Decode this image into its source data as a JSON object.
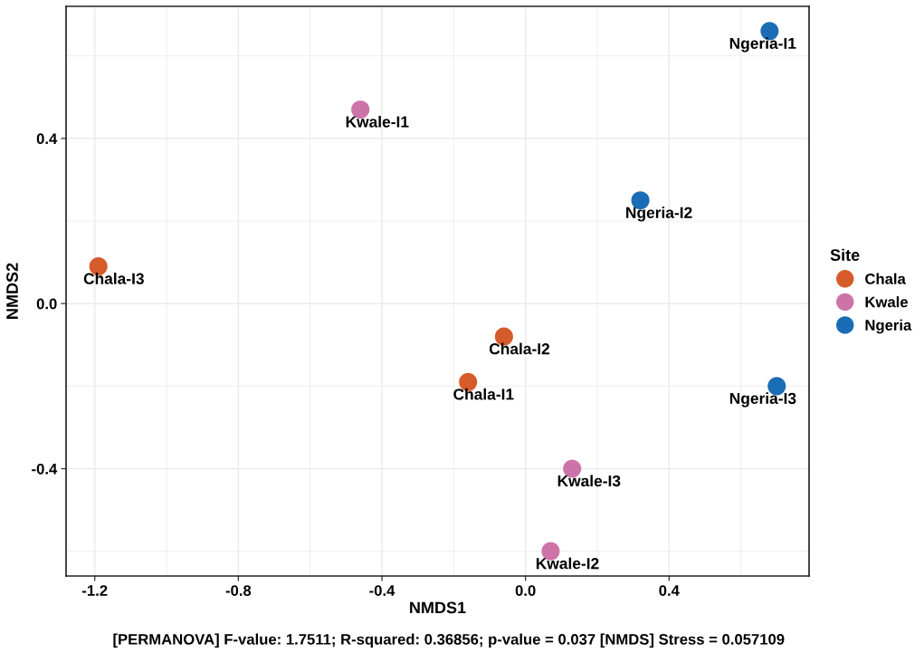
{
  "chart_data": {
    "type": "scatter",
    "xlabel": "NMDS1",
    "ylabel": "NMDS2",
    "legend_title": "Site",
    "legend": "right",
    "grid": true,
    "marker": "circle",
    "series": [
      {
        "name": "Chala",
        "color": "#d55b2a",
        "x": [
          -0.16,
          -0.06,
          -1.19
        ],
        "values": [
          -0.19,
          -0.08,
          0.09
        ]
      },
      {
        "name": "Kwale",
        "color": "#cc74a8",
        "x": [
          -0.46,
          0.07,
          0.13
        ],
        "values": [
          0.47,
          -0.6,
          -0.4
        ]
      },
      {
        "name": "Ngeria",
        "color": "#1a6db5",
        "x": [
          0.68,
          0.32,
          0.7
        ],
        "values": [
          0.66,
          0.25,
          -0.2
        ]
      }
    ],
    "xlim": [
      -1.28,
      0.79
    ],
    "ylim": [
      -0.66,
      0.72
    ],
    "xticks": [
      -1.2,
      -0.8,
      -0.4,
      {
        "value": 0,
        "label": "0.0"
      },
      0.4
    ],
    "yticks": [
      -0.4,
      {
        "value": 0,
        "label": "0.0"
      },
      0.4
    ],
    "annotations": [
      {
        "text": "Chala-I1",
        "x": -0.16,
        "y": -0.19
      },
      {
        "text": "Chala-I2",
        "x": -0.06,
        "y": -0.08
      },
      {
        "text": "Chala-I3",
        "x": -1.19,
        "y": 0.09
      },
      {
        "text": "Kwale-I1",
        "x": -0.46,
        "y": 0.47
      },
      {
        "text": "Kwale-I2",
        "x": 0.07,
        "y": -0.6
      },
      {
        "text": "Kwale-I3",
        "x": 0.13,
        "y": -0.4
      },
      {
        "text": "Ngeria-I1",
        "x": 0.68,
        "y": 0.66
      },
      {
        "text": "Ngeria-I2",
        "x": 0.32,
        "y": 0.25
      },
      {
        "text": "Ngeria-I3",
        "x": 0.7,
        "y": -0.2
      },
      "[PERMANOVA] F-value: 1.7511; R-squared: 0.36856; p-value = 0.037 [NMDS] Stress = 0.057109"
    ]
  }
}
